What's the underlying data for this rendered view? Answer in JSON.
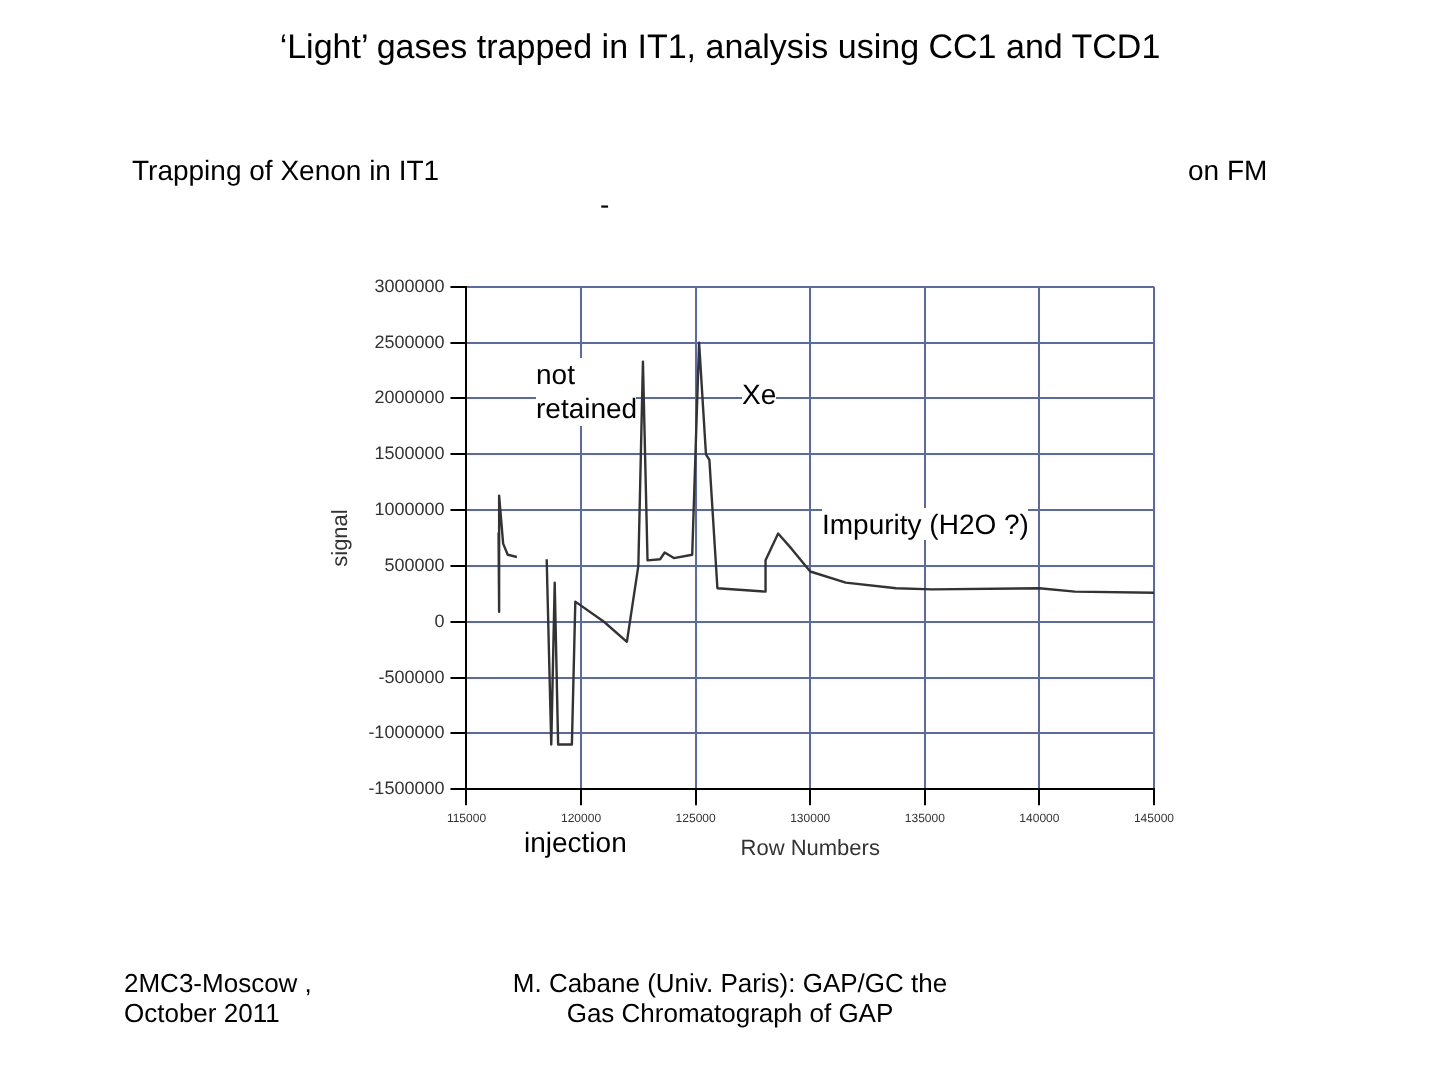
{
  "chart_data": {
    "type": "line",
    "title": "‘Light’ gases trapped in IT1, analysis using CC1 and TCD1",
    "subtitle": "Trapping of Xenon in IT1",
    "xlabel": "Row Numbers",
    "ylabel": "signal",
    "x": [
      116400,
      116400,
      116450,
      116600,
      116800,
      117200,
      117300,
      118500,
      118700,
      118850,
      119000,
      119200,
      119600,
      119750,
      121000,
      122000,
      122500,
      122700,
      122900,
      123450,
      123650,
      124050,
      124850,
      125150,
      125450,
      125600,
      125950,
      128000,
      128050,
      128600,
      129200,
      130000,
      131550,
      133750,
      135300,
      140000,
      141550,
      145000
    ],
    "series": [
      {
        "color": "#333333",
        "values": [
          800000,
          90000,
          1130000,
          700000,
          600000,
          580000,
          null,
          560000,
          -1100000,
          350000,
          -1100000,
          -1100000,
          -1100000,
          180000,
          0,
          -180000,
          500000,
          2330000,
          550000,
          560000,
          620000,
          570000,
          600000,
          2500000,
          1500000,
          1450000,
          300000,
          270000,
          550000,
          790000,
          650000,
          450000,
          350000,
          300000,
          290000,
          300000,
          270000,
          260000
        ]
      }
    ],
    "xlim": [
      115000,
      145000
    ],
    "xticks": [
      115000,
      120000,
      125000,
      130000,
      135000,
      140000,
      145000
    ],
    "ylim": [
      -1500000,
      3000000
    ],
    "yticks": [
      -1500000,
      -1000000,
      -500000,
      0,
      500000,
      1000000,
      1500000,
      2000000,
      2500000,
      3000000
    ],
    "grid": true,
    "legend": false,
    "marker": "none",
    "line_style": "solid",
    "annotations": [
      "not retained",
      "Xe",
      "Impurity (H2O ?)",
      "injection",
      "on FM",
      "-",
      "2MC3-Moscow , October 2011",
      "M. Cabane (Univ. Paris): GAP/GC the Gas Chromatograph of GAP"
    ]
  }
}
